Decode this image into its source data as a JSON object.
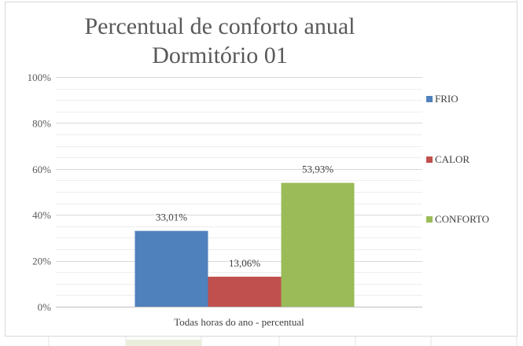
{
  "chart_data": {
    "type": "bar",
    "title_lines": [
      "Percentual de conforto anual",
      "Dormitório 01"
    ],
    "categories": [
      "Todas horas do ano - percentual"
    ],
    "series": [
      {
        "name": "FRIO",
        "values": [
          33.01
        ],
        "label": "33,01%"
      },
      {
        "name": "CALOR",
        "values": [
          13.06
        ],
        "label": "13,06%"
      },
      {
        "name": "CONFORTO",
        "values": [
          53.93
        ],
        "label": "53,93%"
      }
    ],
    "ylim": [
      0,
      100
    ],
    "y_ticks": [
      {
        "value": 0,
        "label": "0%"
      },
      {
        "value": 20,
        "label": "20%"
      },
      {
        "value": 40,
        "label": "40%"
      },
      {
        "value": 60,
        "label": "60%"
      },
      {
        "value": 80,
        "label": "80%"
      },
      {
        "value": 100,
        "label": "100%"
      }
    ],
    "grid": true,
    "legend_placement": "right",
    "colors": {
      "FRIO": "#4f81bd",
      "CALOR": "#c0504d",
      "CONFORTO": "#9bbb59",
      "gridline": "#d9d9d9",
      "text": "#595959"
    }
  }
}
